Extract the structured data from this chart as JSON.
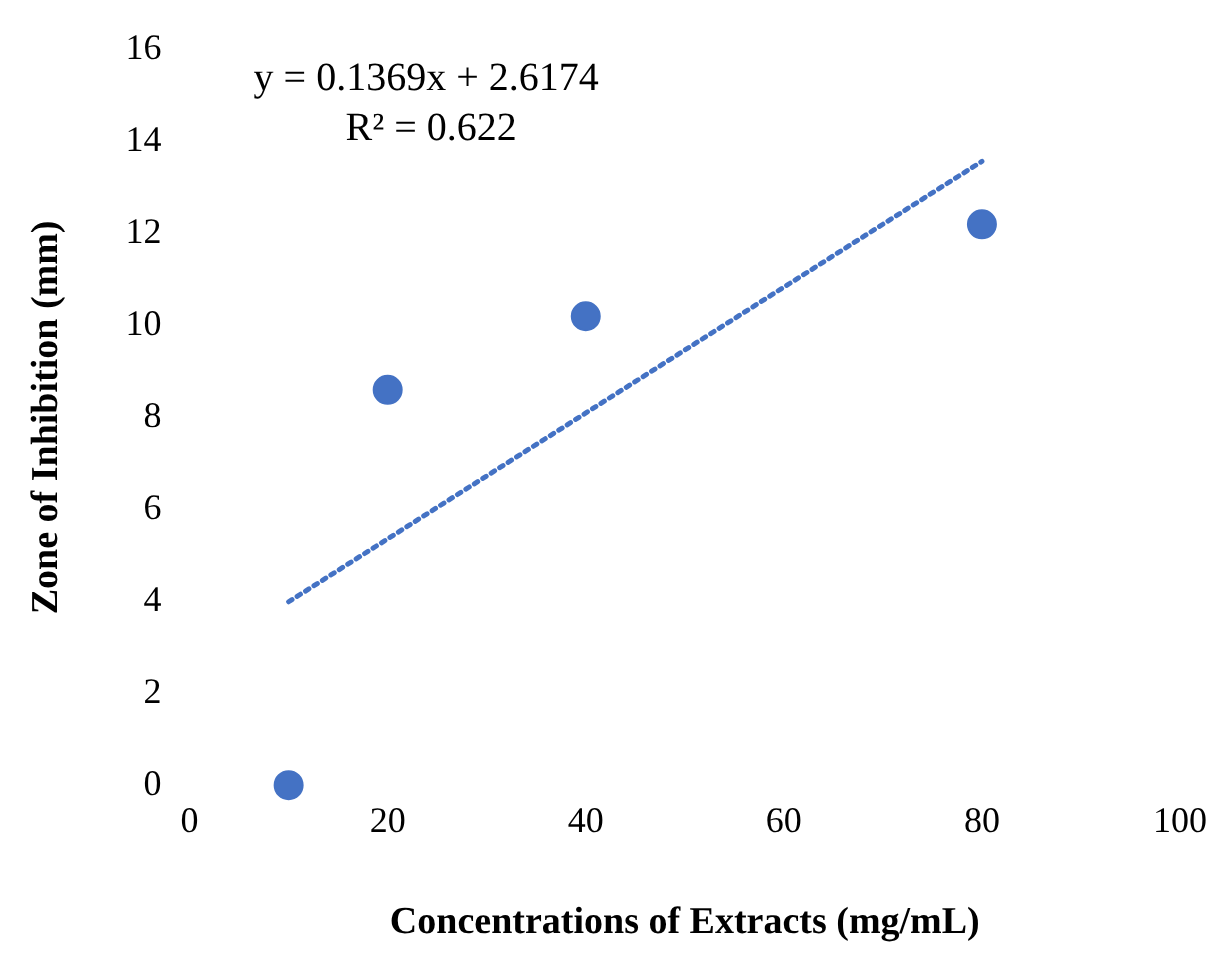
{
  "chart_data": {
    "type": "scatter",
    "xlabel": "Concentrations of Extracts (mg/mL)",
    "ylabel": "Zone of Inhibition (mm)",
    "x": [
      10,
      20,
      40,
      80
    ],
    "series": [
      {
        "color": "#4472c4",
        "values": [
          0,
          8.6,
          10.2,
          12.2
        ],
        "marker": "circle"
      },
      {
        "type": "line",
        "color": "#4472c4",
        "x": [
          10,
          80
        ],
        "values": [
          3.99,
          13.57
        ],
        "marker": "none",
        "line_style": "dotted"
      }
    ],
    "xlim": [
      0,
      100
    ],
    "xticks": [
      0,
      20,
      40,
      60,
      80,
      100
    ],
    "ylim": [
      0,
      16
    ],
    "yticks": [
      0,
      2,
      4,
      6,
      8,
      10,
      12,
      14,
      16
    ],
    "grid": false,
    "legend": false,
    "annotations": [
      "y = 0.1369x + 2.6174",
      "R² = 0.622"
    ]
  }
}
